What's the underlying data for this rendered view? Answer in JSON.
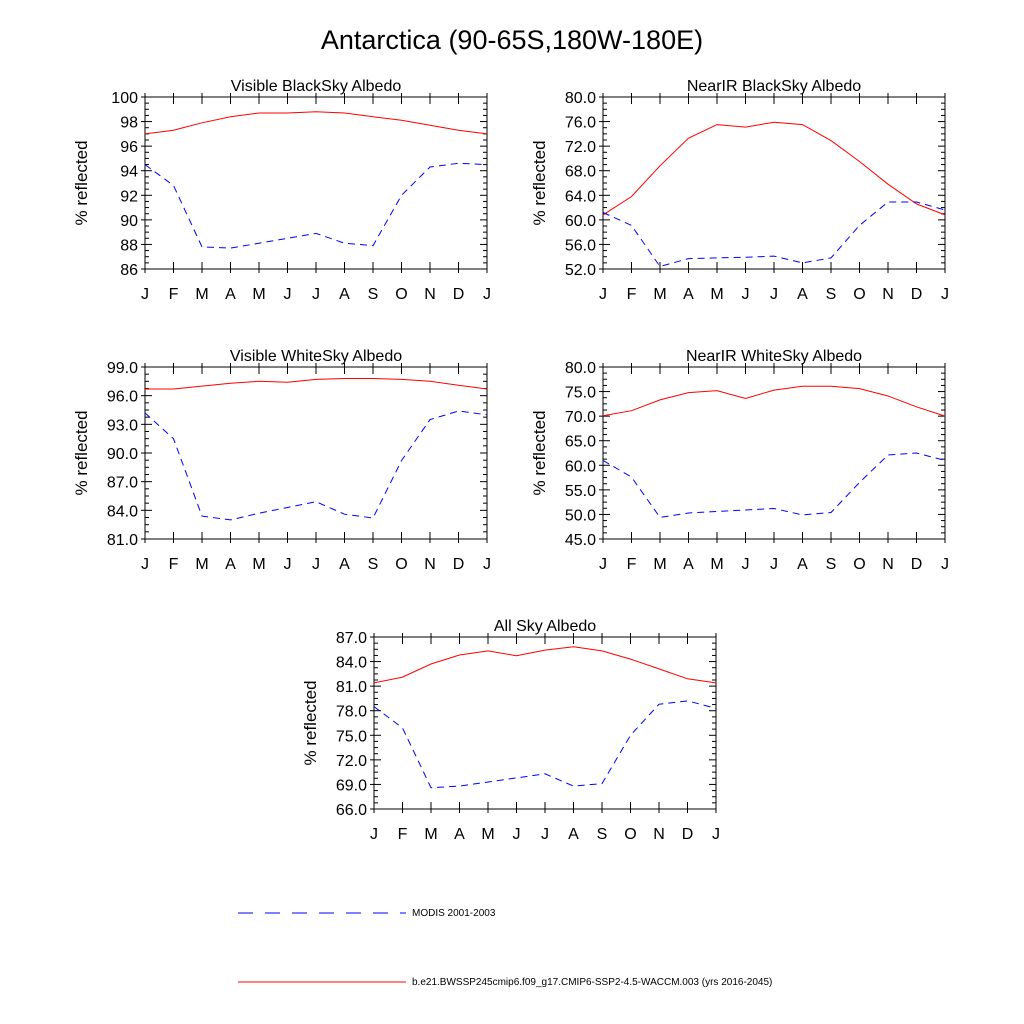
{
  "figure": {
    "title": "Antarctica (90-65S,180W-180E)"
  },
  "legend": [
    {
      "label": "MODIS 2001-2003",
      "style": "dashed",
      "color": "#0000ff"
    },
    {
      "label": "b.e21.BWSSP245cmip6.f09_g17.CMIP6-SSP2-4.5-WACCM.003 (yrs 2016-2045)",
      "style": "solid",
      "color": "#ff0000"
    }
  ],
  "chart_data": [
    {
      "type": "line",
      "title": "Visible BlackSky Albedo",
      "ylabel": "% reflected",
      "categories": [
        "J",
        "F",
        "M",
        "A",
        "M",
        "J",
        "J",
        "A",
        "S",
        "O",
        "N",
        "D",
        "J"
      ],
      "ylim": [
        86,
        100
      ],
      "yticks": [
        "86",
        "88",
        "90",
        "92",
        "94",
        "96",
        "98",
        "100"
      ],
      "series": [
        {
          "style": "solid",
          "color": "#ff0000",
          "values": [
            97.0,
            97.3,
            97.9,
            98.4,
            98.7,
            98.7,
            98.8,
            98.7,
            98.4,
            98.1,
            97.7,
            97.3,
            97.0
          ]
        },
        {
          "style": "dashed",
          "color": "#0000ff",
          "values": [
            94.5,
            92.8,
            87.8,
            87.7,
            88.1,
            88.5,
            88.9,
            88.1,
            87.9,
            92.0,
            94.3,
            94.6,
            94.5
          ]
        }
      ]
    },
    {
      "type": "line",
      "title": "NearIR BlackSky Albedo",
      "ylabel": "% reflected",
      "categories": [
        "J",
        "F",
        "M",
        "A",
        "M",
        "J",
        "J",
        "A",
        "S",
        "O",
        "N",
        "D",
        "J"
      ],
      "ylim": [
        52,
        80
      ],
      "yticks": [
        "52.0",
        "56.0",
        "60.0",
        "64.0",
        "68.0",
        "72.0",
        "76.0",
        "80.0"
      ],
      "series": [
        {
          "style": "solid",
          "color": "#ff0000",
          "values": [
            60.8,
            63.8,
            68.8,
            73.3,
            75.5,
            75.1,
            75.9,
            75.5,
            72.9,
            69.5,
            65.8,
            62.6,
            60.8
          ]
        },
        {
          "style": "dashed",
          "color": "#0000ff",
          "values": [
            61.2,
            59.1,
            52.4,
            53.7,
            53.8,
            53.9,
            54.1,
            53.0,
            53.8,
            59.1,
            62.9,
            62.9,
            61.6
          ]
        }
      ]
    },
    {
      "type": "line",
      "title": "Visible WhiteSky Albedo",
      "ylabel": "% reflected",
      "categories": [
        "J",
        "F",
        "M",
        "A",
        "M",
        "J",
        "J",
        "A",
        "S",
        "O",
        "N",
        "D",
        "J"
      ],
      "ylim": [
        81,
        99
      ],
      "yticks": [
        "81.0",
        "84.0",
        "87.0",
        "90.0",
        "93.0",
        "96.0",
        "99.0"
      ],
      "series": [
        {
          "style": "solid",
          "color": "#ff0000",
          "values": [
            96.7,
            96.7,
            97.0,
            97.3,
            97.5,
            97.4,
            97.7,
            97.8,
            97.8,
            97.7,
            97.5,
            97.1,
            96.7
          ]
        },
        {
          "style": "dashed",
          "color": "#0000ff",
          "values": [
            94.2,
            91.5,
            83.4,
            83.0,
            83.7,
            84.3,
            84.9,
            83.6,
            83.2,
            89.2,
            93.5,
            94.4,
            94.0
          ]
        }
      ]
    },
    {
      "type": "line",
      "title": "NearIR WhiteSky Albedo",
      "ylabel": "% reflected",
      "categories": [
        "J",
        "F",
        "M",
        "A",
        "M",
        "J",
        "J",
        "A",
        "S",
        "O",
        "N",
        "D",
        "J"
      ],
      "ylim": [
        45,
        80
      ],
      "yticks": [
        "45.0",
        "50.0",
        "55.0",
        "60.0",
        "65.0",
        "70.0",
        "75.0",
        "80.0"
      ],
      "series": [
        {
          "style": "solid",
          "color": "#ff0000",
          "values": [
            70.1,
            71.1,
            73.3,
            74.8,
            75.2,
            73.6,
            75.3,
            76.1,
            76.1,
            75.6,
            74.1,
            71.9,
            70.0
          ]
        },
        {
          "style": "dashed",
          "color": "#0000ff",
          "values": [
            61.0,
            57.6,
            49.4,
            50.3,
            50.6,
            50.9,
            51.2,
            49.9,
            50.4,
            56.5,
            62.1,
            62.5,
            61.0
          ]
        }
      ]
    },
    {
      "type": "line",
      "title": "All Sky Albedo",
      "ylabel": "% reflected",
      "categories": [
        "J",
        "F",
        "M",
        "A",
        "M",
        "J",
        "J",
        "A",
        "S",
        "O",
        "N",
        "D",
        "J"
      ],
      "ylim": [
        66,
        87
      ],
      "yticks": [
        "66.0",
        "69.0",
        "72.0",
        "75.0",
        "78.0",
        "81.0",
        "84.0",
        "87.0"
      ],
      "series": [
        {
          "style": "solid",
          "color": "#ff0000",
          "values": [
            81.4,
            82.1,
            83.7,
            84.8,
            85.3,
            84.7,
            85.4,
            85.8,
            85.3,
            84.3,
            83.1,
            81.9,
            81.4
          ]
        },
        {
          "style": "dashed",
          "color": "#0000ff",
          "values": [
            78.5,
            75.9,
            68.6,
            68.8,
            69.3,
            69.8,
            70.3,
            68.8,
            69.1,
            75.0,
            78.8,
            79.2,
            78.3
          ]
        }
      ]
    }
  ]
}
